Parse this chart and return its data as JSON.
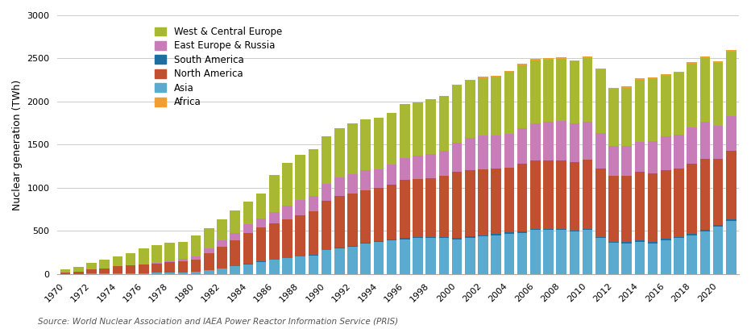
{
  "years": [
    1970,
    1971,
    1972,
    1973,
    1974,
    1975,
    1976,
    1977,
    1978,
    1979,
    1980,
    1981,
    1982,
    1983,
    1984,
    1985,
    1986,
    1987,
    1988,
    1989,
    1990,
    1991,
    1992,
    1993,
    1994,
    1995,
    1996,
    1997,
    1998,
    1999,
    2000,
    2001,
    2002,
    2003,
    2004,
    2005,
    2006,
    2007,
    2008,
    2009,
    2010,
    2011,
    2012,
    2013,
    2014,
    2015,
    2016,
    2017,
    2018,
    2019,
    2020,
    2021
  ],
  "Africa": [
    0,
    0,
    0,
    0,
    0,
    0,
    0,
    0,
    0,
    0,
    0,
    0,
    0,
    0,
    0,
    0,
    0,
    0,
    0,
    0,
    0,
    0,
    0,
    0,
    0,
    0,
    0,
    0,
    0,
    0,
    13,
    13,
    13,
    13,
    13,
    13,
    13,
    13,
    13,
    13,
    13,
    13,
    13,
    13,
    13,
    13,
    13,
    13,
    15,
    15,
    15,
    15
  ],
  "Asia": [
    2,
    3,
    5,
    7,
    8,
    10,
    12,
    14,
    17,
    20,
    25,
    45,
    65,
    90,
    115,
    140,
    165,
    185,
    200,
    215,
    275,
    300,
    320,
    355,
    375,
    390,
    405,
    415,
    420,
    415,
    405,
    420,
    435,
    450,
    465,
    475,
    510,
    510,
    510,
    490,
    510,
    415,
    360,
    355,
    375,
    355,
    395,
    415,
    450,
    495,
    550,
    620
  ],
  "South_America": [
    0,
    0,
    0,
    0,
    0,
    0,
    0,
    0,
    0,
    0,
    0,
    0,
    0,
    0,
    2,
    5,
    5,
    5,
    6,
    7,
    8,
    8,
    8,
    8,
    10,
    10,
    11,
    11,
    13,
    13,
    15,
    16,
    16,
    16,
    16,
    16,
    16,
    16,
    16,
    15,
    15,
    15,
    16,
    15,
    15,
    15,
    15,
    16,
    16,
    16,
    17,
    17
  ],
  "North_America": [
    18,
    28,
    45,
    60,
    80,
    90,
    98,
    108,
    118,
    128,
    138,
    195,
    250,
    300,
    360,
    395,
    415,
    445,
    475,
    505,
    565,
    595,
    605,
    610,
    615,
    635,
    675,
    675,
    680,
    715,
    765,
    765,
    765,
    755,
    755,
    785,
    795,
    795,
    795,
    795,
    805,
    795,
    765,
    765,
    795,
    795,
    795,
    795,
    815,
    825,
    765,
    795
  ],
  "East_Europe_Russia": [
    0,
    0,
    0,
    0,
    0,
    0,
    0,
    10,
    14,
    28,
    38,
    58,
    78,
    88,
    100,
    108,
    138,
    158,
    173,
    178,
    198,
    218,
    228,
    228,
    218,
    238,
    258,
    268,
    278,
    288,
    338,
    378,
    388,
    388,
    388,
    418,
    428,
    448,
    458,
    448,
    438,
    408,
    348,
    348,
    348,
    378,
    388,
    388,
    418,
    428,
    388,
    398
  ],
  "West_Central_Europe": [
    30,
    50,
    75,
    100,
    120,
    145,
    190,
    200,
    210,
    195,
    250,
    235,
    240,
    255,
    265,
    285,
    430,
    500,
    530,
    540,
    550,
    570,
    590,
    590,
    590,
    600,
    620,
    625,
    640,
    635,
    660,
    660,
    670,
    680,
    720,
    730,
    730,
    720,
    720,
    720,
    740,
    740,
    660,
    680,
    720,
    720,
    710,
    720,
    740,
    740,
    730,
    750
  ],
  "colors": {
    "Africa": "#f0a030",
    "Asia": "#5aabcf",
    "South_America": "#1e6fa0",
    "North_America": "#c05030",
    "East_Europe_Russia": "#c87db8",
    "West_Central_Europe": "#a8b832"
  },
  "legend_labels": {
    "West_Central_Europe": "West & Central Europe",
    "East_Europe_Russia": "East Europe & Russia",
    "South_America": "South America",
    "North_America": "North America",
    "Asia": "Asia",
    "Africa": "Africa"
  },
  "stack_order": [
    "Asia",
    "South_America",
    "North_America",
    "East_Europe_Russia",
    "West_Central_Europe",
    "Africa"
  ],
  "legend_order": [
    "West_Central_Europe",
    "East_Europe_Russia",
    "South_America",
    "North_America",
    "Asia",
    "Africa"
  ],
  "ylabel": "Nuclear generation (TWh)",
  "ylim": [
    0,
    3000
  ],
  "yticks": [
    0,
    500,
    1000,
    1500,
    2000,
    2500,
    3000
  ],
  "source_text": "Source: World Nuclear Association and IAEA Power Reactor Information Service (PRIS)",
  "background_color": "#ffffff",
  "grid_color": "#cccccc"
}
